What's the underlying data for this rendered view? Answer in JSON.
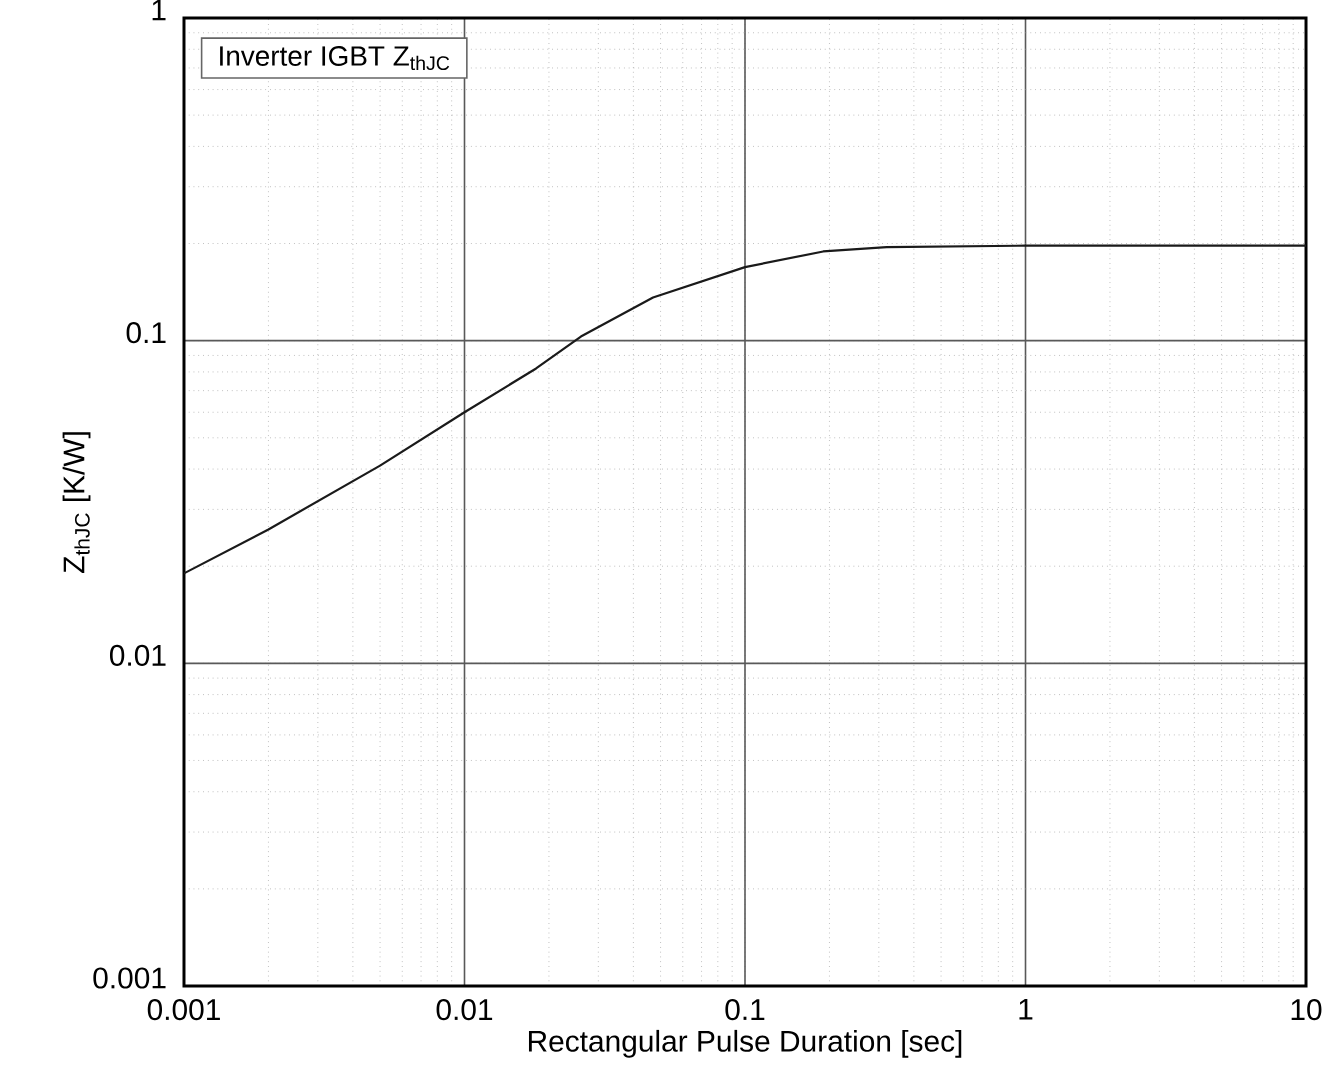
{
  "chart_data": {
    "type": "line",
    "title": "Inverter IGBT Z$_{thJC}$",
    "xlabel": "Rectangular Pulse Duration [sec]",
    "ylabel": "Z$_{thJC}$ [K/W]",
    "log": "xy",
    "grid": true,
    "xlim": [
      0.001,
      10
    ],
    "xticks": [
      0.001,
      0.01,
      0.1,
      1,
      10
    ],
    "ylim": [
      0.001,
      1
    ],
    "yticks": [
      0.001,
      0.01,
      0.1,
      1
    ],
    "x": [
      0.001,
      0.002,
      0.005,
      0.01,
      0.018,
      0.026,
      0.047,
      0.1,
      0.19,
      0.32,
      1,
      10
    ],
    "series": [
      {
        "color": "#1a1a1a",
        "values": [
          0.019,
          0.026,
          0.041,
          0.06,
          0.082,
          0.103,
          0.136,
          0.169,
          0.189,
          0.195,
          0.197,
          0.197
        ]
      }
    ]
  }
}
